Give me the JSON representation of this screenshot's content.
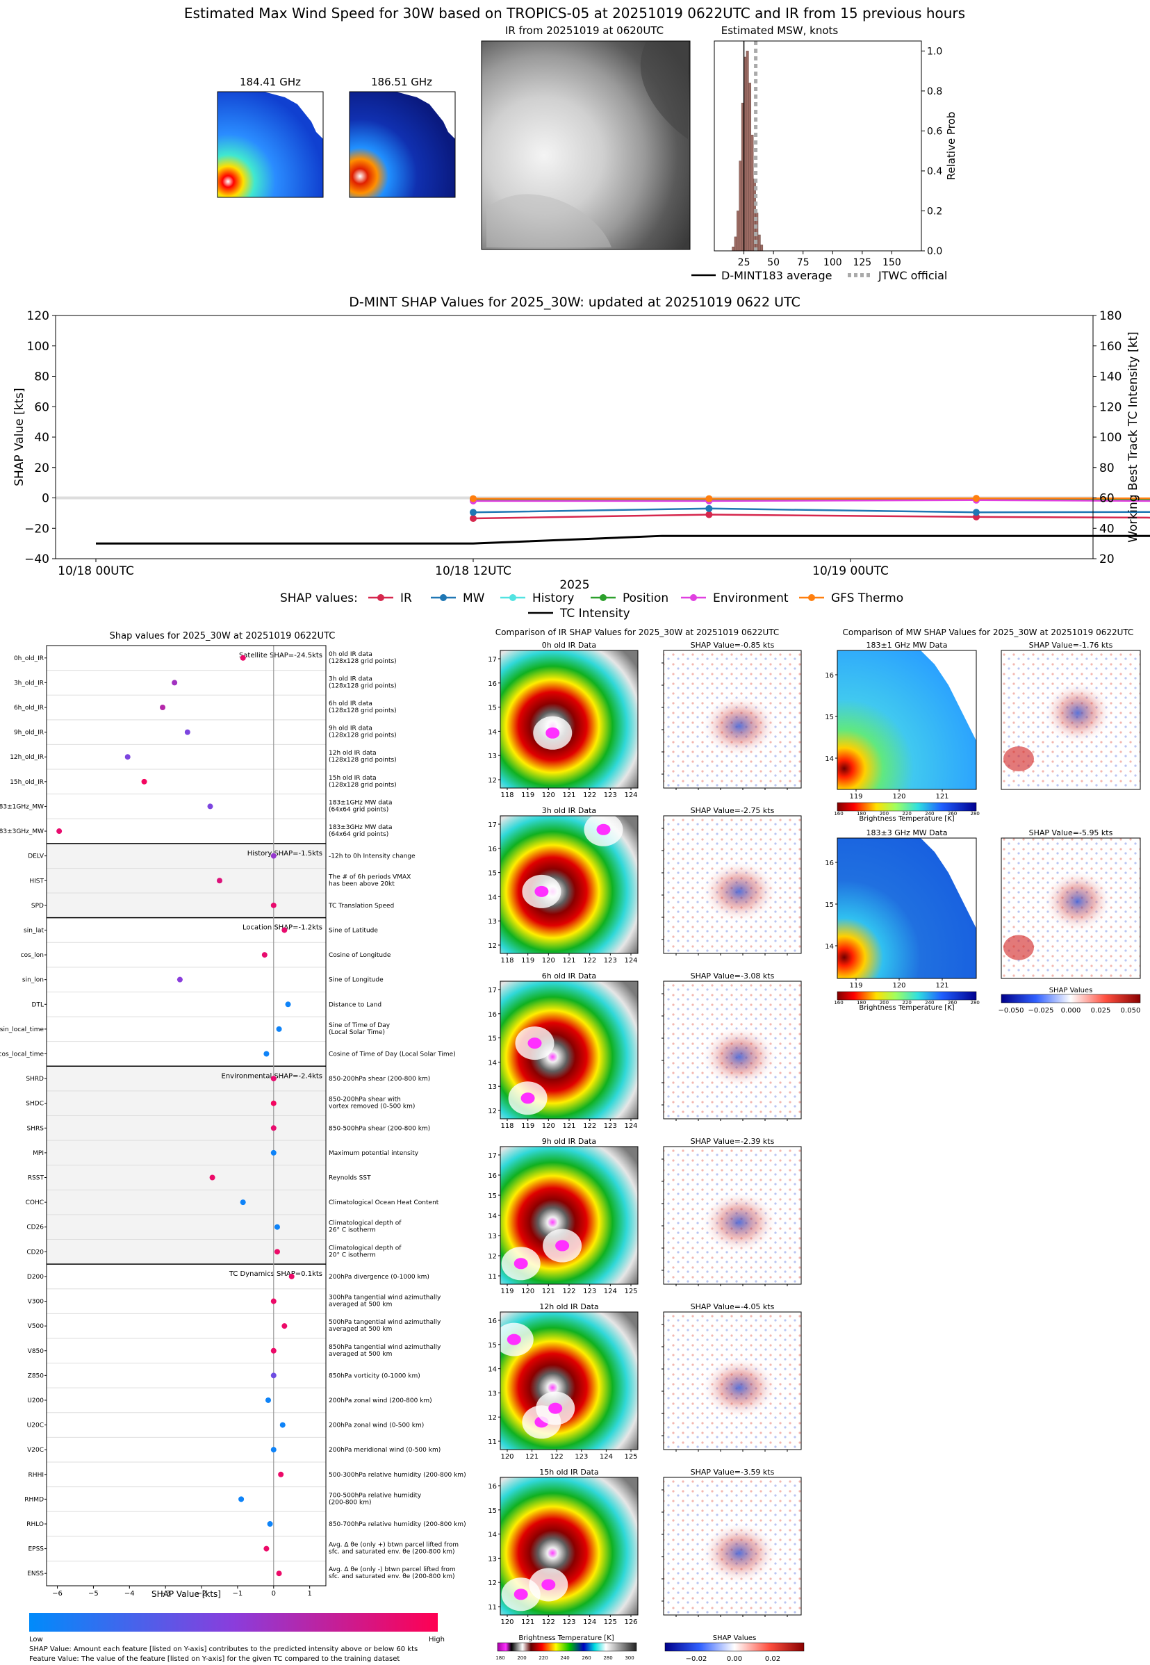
{
  "header": {
    "title": "Estimated Max Wind Speed for 30W based on TROPICS-05 at 20251019 0622UTC and IR from 15 previous hours"
  },
  "mw_panels": [
    {
      "title": "184.41 GHz"
    },
    {
      "title": "186.51 GHz"
    }
  ],
  "ir_panel": {
    "title": "IR from 20251019 at 0620UTC"
  },
  "msw_hist": {
    "title": "Estimated MSW, knots",
    "ylabel": "Relative Prob",
    "xticks": [
      "25",
      "50",
      "75",
      "100",
      "125",
      "150"
    ],
    "yticks": [
      "0.0",
      "0.2",
      "0.4",
      "0.6",
      "0.8",
      "1.0"
    ],
    "legend": [
      "D-MINT183 average",
      "JTWC official"
    ]
  },
  "timeseries": {
    "title": "D-MINT SHAP Values for 2025_30W: updated at 20251019 0622 UTC",
    "ylabel_left": "SHAP Value [kts]",
    "ylabel_right": "Working Best Track TC Intensity [kt]",
    "xlabel": "2025",
    "xticks": [
      "10/18 00UTC",
      "10/18 12UTC",
      "10/19 00UTC"
    ],
    "yticks_left": [
      "120",
      "100",
      "80",
      "60",
      "40",
      "20",
      "0",
      "−20",
      "−40"
    ],
    "yticks_right": [
      "180",
      "160",
      "140",
      "120",
      "100",
      "80",
      "60",
      "40",
      "20"
    ],
    "legend_title": "SHAP values:",
    "legend": [
      "IR",
      "MW",
      "History",
      "Position",
      "Environment",
      "GFS Thermo",
      "TC Intensity"
    ]
  },
  "shap_panel": {
    "title": "Shap values for 2025_30W at 20251019 0622UTC",
    "xlabel": "SHAP Value [kts]",
    "xticks": [
      "−6",
      "−5",
      "−4",
      "−3",
      "−2",
      "−1",
      "0",
      "1"
    ],
    "groups": [
      "Satellite SHAP=-24.5kts",
      "History SHAP=-1.5kts",
      "Location SHAP=-1.2kts",
      "Environmental SHAP=-2.4kts",
      "TC Dynamics SHAP=0.1kts"
    ],
    "colorbar_low": "Low",
    "colorbar_high": "High",
    "note1": "SHAP Value: Amount each feature [listed on Y-axis] contributes to the predicted intensity above or below 60 kts",
    "note2": "Feature Value: The value of the feature [listed on Y-axis] for the given TC compared to the training dataset"
  },
  "ir_compare": {
    "title": "Comparison of IR SHAP Values for 2025_30W at 20251019 0622UTC",
    "panels": [
      {
        "data_title": "0h old IR Data",
        "shap_title": "SHAP Value=-0.85 kts",
        "yticks": [
          "17",
          "16",
          "15",
          "14",
          "13",
          "12"
        ],
        "xticks": [
          "118",
          "119",
          "120",
          "121",
          "122",
          "123",
          "124"
        ]
      },
      {
        "data_title": "3h old IR Data",
        "shap_title": "SHAP Value=-2.75 kts",
        "yticks": [
          "17",
          "16",
          "15",
          "14",
          "13",
          "12"
        ],
        "xticks": [
          "118",
          "119",
          "120",
          "121",
          "122",
          "123",
          "124"
        ]
      },
      {
        "data_title": "6h old IR Data",
        "shap_title": "SHAP Value=-3.08 kts",
        "yticks": [
          "17",
          "16",
          "15",
          "14",
          "13",
          "12"
        ],
        "xticks": [
          "118",
          "119",
          "120",
          "121",
          "122",
          "123",
          "124"
        ]
      },
      {
        "data_title": "9h old IR Data",
        "shap_title": "SHAP Value=-2.39 kts",
        "yticks": [
          "17",
          "16",
          "15",
          "14",
          "13",
          "12",
          "11"
        ],
        "xticks": [
          "119",
          "120",
          "121",
          "122",
          "123",
          "124",
          "125"
        ]
      },
      {
        "data_title": "12h old IR Data",
        "shap_title": "SHAP Value=-4.05 kts",
        "yticks": [
          "16",
          "15",
          "14",
          "13",
          "12",
          "11"
        ],
        "xticks": [
          "120",
          "121",
          "122",
          "123",
          "124",
          "125"
        ]
      },
      {
        "data_title": "15h old IR Data",
        "shap_title": "SHAP Value=-3.59 kts",
        "yticks": [
          "16",
          "15",
          "14",
          "13",
          "12",
          "11"
        ],
        "xticks": [
          "120",
          "121",
          "122",
          "123",
          "124",
          "125",
          "126"
        ]
      }
    ],
    "cbar_label": "Brightness Temperature [K]",
    "cbar_ticks": [
      "180",
      "200",
      "220",
      "240",
      "260",
      "280",
      "300"
    ],
    "shap_cbar_label": "SHAP Values",
    "shap_cbar_ticks": [
      "−0.02",
      "0.00",
      "0.02"
    ]
  },
  "mw_compare": {
    "title": "Comparison of MW SHAP Values for 2025_30W at 20251019 0622UTC",
    "panels": [
      {
        "data_title": "183±1 GHz MW Data",
        "shap_title": "SHAP Value=-1.76 kts"
      },
      {
        "data_title": "183±3 GHz MW Data",
        "shap_title": "SHAP Value=-5.95 kts"
      }
    ],
    "yticks": [
      "16",
      "15",
      "14"
    ],
    "xticks": [
      "119",
      "120",
      "121"
    ],
    "cbar_label": "Brightness Temperature [K]",
    "cbar_ticks": [
      "160",
      "180",
      "200",
      "220",
      "240",
      "260",
      "280"
    ],
    "shap_cbar_label": "SHAP Values",
    "shap_cbar_ticks": [
      "−0.050",
      "−0.025",
      "0.000",
      "0.025",
      "0.050"
    ]
  },
  "chart_data": [
    {
      "type": "bar",
      "title": "Estimated MSW, knots",
      "xlabel": "",
      "ylabel": "Relative Prob",
      "xlim": [
        0,
        175
      ],
      "ylim": [
        0,
        1.05
      ],
      "categories": [
        16,
        18,
        20,
        22,
        24,
        26,
        28,
        30,
        32,
        34,
        36,
        38,
        40
      ],
      "values": [
        0.02,
        0.07,
        0.2,
        0.45,
        0.74,
        0.97,
        1.0,
        0.84,
        0.58,
        0.36,
        0.19,
        0.08,
        0.03
      ],
      "lines": [
        {
          "name": "D-MINT183 average",
          "x": 25
        },
        {
          "name": "JTWC official",
          "x": 35
        }
      ]
    },
    {
      "type": "line",
      "title": "D-MINT SHAP Values for 2025_30W: updated at 20251019 0622 UTC",
      "xlabel": "2025",
      "ylabel": "SHAP Value [kts]",
      "ylabel_right": "Working Best Track TC Intensity [kt]",
      "x_hours": [
        0,
        12,
        24,
        30
      ],
      "ylim": [
        -40,
        120
      ],
      "ylim_right": [
        20,
        180
      ],
      "series": [
        {
          "name": "IR",
          "color": "#d6274d",
          "x": [
            12,
            19.5,
            28,
            39,
            42.3,
            43,
            44.8
          ],
          "y": [
            -13.5,
            -11,
            -12.5,
            -13.5,
            -15.5,
            -15,
            -17
          ]
        },
        {
          "name": "MW",
          "color": "#1f77b4",
          "x": [
            12,
            19.5,
            28,
            39,
            42.3,
            43,
            44.8
          ],
          "y": [
            -9.5,
            -7,
            -9.5,
            -9,
            -8,
            -7.5,
            -8
          ]
        },
        {
          "name": "History",
          "color": "#52e3e1",
          "x": [
            12,
            19.5,
            28,
            39,
            42.3,
            43,
            44.8
          ],
          "y": [
            -1.5,
            -1,
            -1,
            -1.5,
            -1,
            -1,
            -1.5
          ]
        },
        {
          "name": "Position",
          "color": "#2ca02c",
          "x": [
            12,
            19.5,
            28,
            39,
            42.3,
            43,
            44.8
          ],
          "y": [
            -1,
            -0.8,
            -0.8,
            -1,
            -0.8,
            -0.8,
            -1
          ]
        },
        {
          "name": "Environment",
          "color": "#e040e0",
          "x": [
            12,
            19.5,
            28,
            39,
            42.3,
            43,
            44.8
          ],
          "y": [
            -2,
            -2,
            -1.5,
            -2.5,
            -2,
            -2,
            -2.4
          ]
        },
        {
          "name": "GFS Thermo",
          "color": "#ff7f0e",
          "x": [
            12,
            19.5,
            28,
            39,
            42.3,
            43,
            44.8
          ],
          "y": [
            -0.5,
            -0.5,
            -0.3,
            -0.3,
            -0.3,
            -0.3,
            -0.3
          ]
        },
        {
          "name": "TC Intensity",
          "color": "#000000",
          "axis": "right",
          "x": [
            0,
            6,
            12,
            18,
            24,
            30,
            36,
            42,
            45
          ],
          "y": [
            30,
            30,
            30,
            35,
            35,
            35,
            35,
            37,
            37
          ]
        }
      ]
    },
    {
      "type": "scatter",
      "title": "Shap values for 2025_30W at 20251019 0622UTC",
      "xlabel": "SHAP Value [kts]",
      "xlim": [
        -6.3,
        1.45
      ],
      "points": [
        {
          "feature": "0h_old_IR",
          "desc": "0h old IR data|(128x128 grid points)",
          "shap": -0.85,
          "fv": 0.92
        },
        {
          "feature": "3h_old_IR",
          "desc": "3h old IR data|(128x128 grid points)",
          "shap": -2.75,
          "fv": 0.6
        },
        {
          "feature": "6h_old_IR",
          "desc": "6h old IR data|(128x128 grid points)",
          "shap": -3.08,
          "fv": 0.68
        },
        {
          "feature": "9h_old_IR",
          "desc": "9h old IR data|(128x128 grid points)",
          "shap": -2.39,
          "fv": 0.45
        },
        {
          "feature": "12h_old_IR",
          "desc": "12h old IR data|(128x128 grid points)",
          "shap": -4.05,
          "fv": 0.45
        },
        {
          "feature": "15h_old_IR",
          "desc": "15h old IR data|(128x128 grid points)",
          "shap": -3.59,
          "fv": 0.95
        },
        {
          "feature": "183±1GHz_MW",
          "desc": "183±1GHz MW data|(64x64 grid points)",
          "shap": -1.76,
          "fv": 0.45
        },
        {
          "feature": "183±3GHz_MW",
          "desc": "183±3GHz MW data|(64x64 grid points)",
          "shap": -5.95,
          "fv": 0.9
        },
        {
          "feature": "DELV",
          "desc": "-12h to 0h Intensity change",
          "shap": 0.0,
          "fv": 0.55
        },
        {
          "feature": "HIST",
          "desc": "The # of 6h periods VMAX|has been above 20kt",
          "shap": -1.5,
          "fv": 0.85
        },
        {
          "feature": "SPD",
          "desc": "TC Translation Speed",
          "shap": 0.0,
          "fv": 0.9
        },
        {
          "feature": "sin_lat",
          "desc": "Sine of Latitude",
          "shap": 0.3,
          "fv": 0.9
        },
        {
          "feature": "cos_lon",
          "desc": "Cosine of Longitude",
          "shap": -0.25,
          "fv": 0.9
        },
        {
          "feature": "sin_lon",
          "desc": "Sine of Longitude",
          "shap": -2.6,
          "fv": 0.5
        },
        {
          "feature": "DTL",
          "desc": "Distance to Land",
          "shap": 0.4,
          "fv": 0.05
        },
        {
          "feature": "sin_local_time",
          "desc": "Sine of Time of Day|(Local Solar Time)",
          "shap": 0.15,
          "fv": 0.05
        },
        {
          "feature": "cos_local_time",
          "desc": "Cosine of Time of Day (Local Solar Time)",
          "shap": -0.2,
          "fv": 0.05
        },
        {
          "feature": "SHRD",
          "desc": "850-200hPa shear (200-800 km)",
          "shap": 0.0,
          "fv": 0.9
        },
        {
          "feature": "SHDC",
          "desc": "850-200hPa shear with|vortex removed (0-500 km)",
          "shap": 0.0,
          "fv": 0.95
        },
        {
          "feature": "SHRS",
          "desc": "850-500hPa shear (200-800 km)",
          "shap": 0.0,
          "fv": 0.9
        },
        {
          "feature": "MPI",
          "desc": "Maximum potential intensity",
          "shap": 0.0,
          "fv": 0.05
        },
        {
          "feature": "RSST",
          "desc": "Reynolds SST",
          "shap": -1.7,
          "fv": 0.92
        },
        {
          "feature": "COHC",
          "desc": "Climatological Ocean Heat Content",
          "shap": -0.85,
          "fv": 0.05
        },
        {
          "feature": "CD26",
          "desc": "Climatological depth of|26° C isotherm",
          "shap": 0.1,
          "fv": 0.05
        },
        {
          "feature": "CD20",
          "desc": "Climatological depth of|20° C isotherm",
          "shap": 0.1,
          "fv": 0.92
        },
        {
          "feature": "D200",
          "desc": "200hPa divergence (0-1000 km)",
          "shap": 0.5,
          "fv": 0.92
        },
        {
          "feature": "V300",
          "desc": "300hPa tangential wind azimuthally|averaged at 500 km",
          "shap": 0.0,
          "fv": 0.92
        },
        {
          "feature": "V500",
          "desc": "500hPa tangential wind azimuthally|averaged at 500 km",
          "shap": 0.3,
          "fv": 0.92
        },
        {
          "feature": "V850",
          "desc": "850hPa tangential wind azimuthally|averaged at 500 km",
          "shap": 0.0,
          "fv": 0.92
        },
        {
          "feature": "Z850",
          "desc": "850hPa vorticity (0-1000 km)",
          "shap": 0.0,
          "fv": 0.4
        },
        {
          "feature": "U200",
          "desc": "200hPa zonal wind (200-800 km)",
          "shap": -0.15,
          "fv": 0.05
        },
        {
          "feature": "U20C",
          "desc": "200hPa zonal wind (0-500 km)",
          "shap": 0.25,
          "fv": 0.05
        },
        {
          "feature": "V20C",
          "desc": "200hPa meridional wind (0-500 km)",
          "shap": 0.0,
          "fv": 0.05
        },
        {
          "feature": "RHHI",
          "desc": "500-300hPa relative humidity (200-800 km)",
          "shap": 0.2,
          "fv": 0.92
        },
        {
          "feature": "RHMD",
          "desc": "700-500hPa relative humidity|(200-800 km)",
          "shap": -0.9,
          "fv": 0.05
        },
        {
          "feature": "RHLO",
          "desc": "850-700hPa relative humidity (200-800 km)",
          "shap": -0.1,
          "fv": 0.05
        },
        {
          "feature": "EPSS",
          "desc": "Avg. Δ θe (only +) btwn parcel lifted from|sfc. and saturated env. θe (200-800 km)",
          "shap": -0.2,
          "fv": 0.92
        },
        {
          "feature": "ENSS",
          "desc": "Avg. Δ θe (only -) btwn parcel lifted from|sfc. and saturated env. θe (200-800 km)",
          "shap": 0.15,
          "fv": 0.92
        }
      ]
    }
  ]
}
